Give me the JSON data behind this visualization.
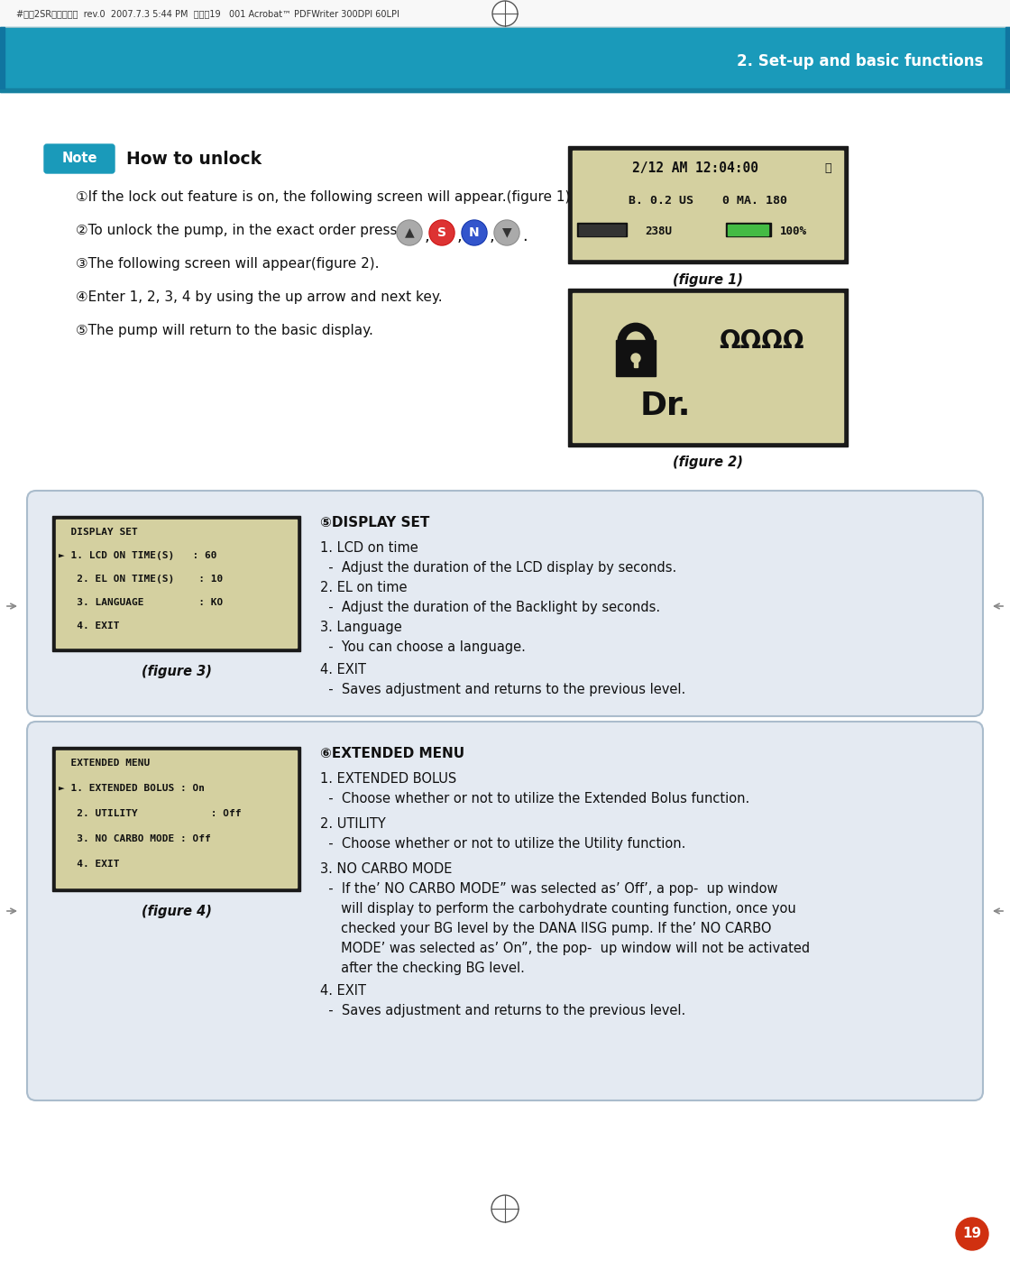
{
  "page_bg": "#ffffff",
  "header_bar_color": "#1a9aba",
  "header_text": "2. Set-up and basic functions",
  "header_text_color": "#ffffff",
  "top_bar_text": "#다나2SR영문메뉴얼  rev.0  2007.7.3 5:44 PM  페이지19   001 Acrobat™ PDFWriter 300DPI 60LPI",
  "note_bg": "#1a9aba",
  "note_text": "Note",
  "note_text_color": "#ffffff",
  "how_to_unlock": "How to unlock",
  "step1": "①If the lock out feature is on, the following screen will appear.(figure 1)",
  "step2_pre": "②To unlock the pump, in the exact order press",
  "step3": "③The following screen will appear(figure 2).",
  "step4": "④Enter 1, 2, 3, 4 by using the up arrow and next key.",
  "step5": "⑤The pump will return to the basic display.",
  "figure1_label": "(figure 1)",
  "figure2_label": "(figure 2)",
  "figure3_label": "(figure 3)",
  "figure4_label": "(figure 4)",
  "lcd_bg": "#d4d0a0",
  "lcd_border": "#1a1a1a",
  "section_bg": "#e4eaf2",
  "section_border": "#aabccc",
  "ds_title": "⑤DISPLAY SET",
  "ds_items": [
    [
      "1. LCD on time",
      false
    ],
    [
      "  -  Adjust the duration of the LCD display by seconds.",
      true
    ],
    [
      "2. EL on time",
      false
    ],
    [
      "  -  Adjust the duration of the Backlight by seconds.",
      true
    ],
    [
      "3. Language",
      false
    ],
    [
      "  -  You can choose a language.",
      true
    ],
    [
      "4. EXIT",
      false
    ],
    [
      "  -  Saves adjustment and returns to the previous level.",
      true
    ]
  ],
  "em_title": "⑥EXTENDED MENU",
  "em_items": [
    [
      "1. EXTENDED BOLUS",
      false
    ],
    [
      "  -  Choose whether or not to utilize the Extended Bolus function.",
      true
    ],
    [
      "2. UTILITY",
      false
    ],
    [
      "  -  Choose whether or not to utilize the Utility function.",
      true
    ],
    [
      "3. NO CARBO MODE",
      false
    ],
    [
      "  -  If the’ NO CARBO MODE” was selected as’ Off’, a pop-  up window",
      true
    ],
    [
      "     will display to perform the carbohydrate counting function, once you",
      true
    ],
    [
      "     checked your BG level by the DANA IISG pump. If the’ NO CARBO",
      true
    ],
    [
      "     MODE’ was selected as’ On”, the pop-  up window will not be activated",
      true
    ],
    [
      "     after the checking BG level.",
      true
    ],
    [
      "4. EXIT",
      false
    ],
    [
      "  -  Saves adjustment and returns to the previous level.",
      true
    ]
  ],
  "page_number": "19",
  "page_num_bg": "#d03010",
  "text_color": "#111111",
  "fig_label_color": "#111111"
}
